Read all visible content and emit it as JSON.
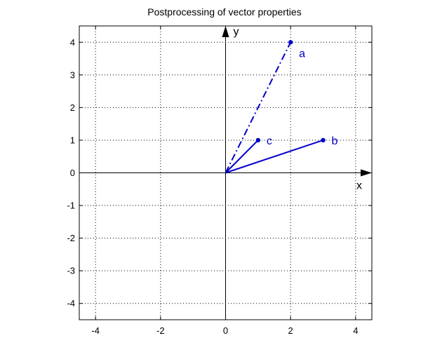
{
  "chart_data": {
    "type": "line",
    "title": "Postprocessing of vector properties",
    "xlim": [
      -4.5,
      4.5
    ],
    "ylim": [
      -4.5,
      4.5
    ],
    "xticks": [
      -4,
      -2,
      0,
      2,
      4
    ],
    "yticks": [
      -4,
      -3,
      -2,
      -1,
      0,
      1,
      2,
      3,
      4
    ],
    "grid": true,
    "axis_arrows": {
      "x_label": "x",
      "y_label": "y"
    },
    "color": "#0000cc",
    "vectors": [
      {
        "name": "a",
        "from": [
          0,
          0
        ],
        "to": [
          2,
          4
        ],
        "style": "dash-dot"
      },
      {
        "name": "b",
        "from": [
          0,
          0
        ],
        "to": [
          3,
          1
        ],
        "style": "solid"
      },
      {
        "name": "c",
        "from": [
          0,
          0
        ],
        "to": [
          1,
          1
        ],
        "style": "solid"
      }
    ]
  }
}
